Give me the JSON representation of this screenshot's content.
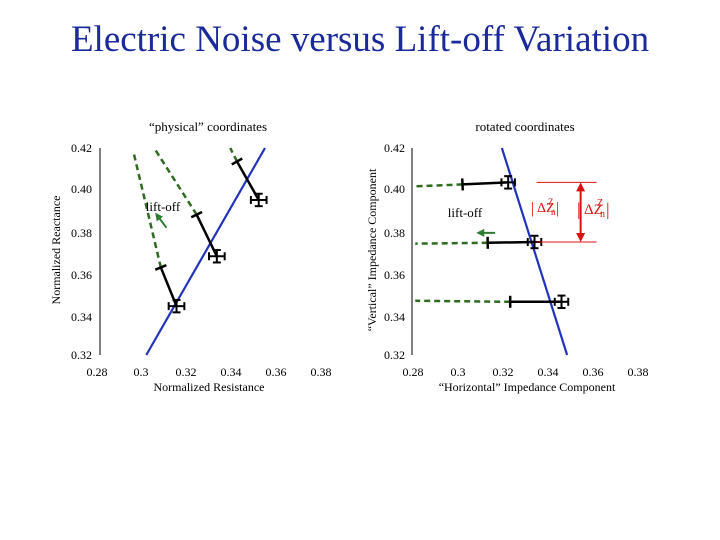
{
  "slide": {
    "title": "Electric Noise versus Lift-off Variation"
  },
  "chart_data": [
    {
      "type": "line",
      "subtitle": "“physical” coordinates",
      "xlabel": "Normalized Resistance",
      "ylabel": "Normalized Reactance",
      "xlim": [
        0.28,
        0.38
      ],
      "ylim": [
        0.32,
        0.42
      ],
      "xticks": [
        "0.28",
        "0.3",
        "0.32",
        "0.34",
        "0.36",
        "0.38"
      ],
      "yticks": [
        "0.32",
        "0.34",
        "0.36",
        "0.38",
        "0.40",
        "0.42"
      ],
      "annotation": "lift-off",
      "colors": {
        "curve": "#2233bb",
        "liftoff": "#2e6b1f",
        "segment": "#000000",
        "arrow": "#2e7d32"
      },
      "curve": [
        [
          0.302,
          0.32
        ],
        [
          0.355,
          0.42
        ]
      ],
      "measurement_points": [
        {
          "x": 0.3155,
          "y": 0.3436,
          "dx": 0.0035,
          "dy": 0.003
        },
        {
          "x": 0.3335,
          "y": 0.3677,
          "dx": 0.0035,
          "dy": 0.003
        },
        {
          "x": 0.3522,
          "y": 0.3949,
          "dx": 0.0035,
          "dy": 0.003
        }
      ],
      "liftoff_segments": [
        {
          "from": [
            0.3155,
            0.3436
          ],
          "to": [
            0.3085,
            0.3623
          ]
        },
        {
          "from": [
            0.3335,
            0.3677
          ],
          "to": [
            0.3245,
            0.3878
          ]
        },
        {
          "from": [
            0.3522,
            0.3949
          ],
          "to": [
            0.3425,
            0.4135
          ]
        }
      ],
      "dashed_extensions": [
        {
          "from": [
            0.3085,
            0.3623
          ],
          "to": [
            0.2965,
            0.417
          ]
        },
        {
          "from": [
            0.3245,
            0.3878
          ],
          "to": [
            0.3055,
            0.42
          ]
        },
        {
          "from": [
            0.3425,
            0.4135
          ],
          "to": [
            0.3395,
            0.42
          ]
        }
      ],
      "arrow": {
        "from": [
          0.311,
          0.3815
        ],
        "to": [
          0.3065,
          0.388
        ]
      }
    },
    {
      "type": "line",
      "subtitle": "rotated coordinates",
      "xlabel": "“Horizontal” Impedance Component",
      "ylabel": "“Vertical” Impedance Component",
      "xlim": [
        0.28,
        0.38
      ],
      "ylim": [
        0.32,
        0.42
      ],
      "xticks": [
        "0.28",
        "0.3",
        "0.32",
        "0.34",
        "0.36",
        "0.38"
      ],
      "yticks": [
        "0.32",
        "0.34",
        "0.36",
        "0.38",
        "0.40",
        "0.42"
      ],
      "annotation": "lift-off",
      "colors": {
        "curve": "#2233bb",
        "liftoff": "#2e6b1f",
        "segment": "#000000",
        "arrow": "#2e7d32",
        "delta": "#dd1111"
      },
      "curve": [
        [
          0.3195,
          0.42
        ],
        [
          0.3485,
          0.32
        ]
      ],
      "measurement_points": [
        {
          "x": 0.3223,
          "y": 0.4034,
          "dx": 0.003,
          "dy": 0.003
        },
        {
          "x": 0.334,
          "y": 0.3746,
          "dx": 0.003,
          "dy": 0.003
        },
        {
          "x": 0.346,
          "y": 0.3457,
          "dx": 0.003,
          "dy": 0.003
        }
      ],
      "liftoff_segments": [
        {
          "from": [
            0.3223,
            0.4034
          ],
          "to": [
            0.302,
            0.4024
          ]
        },
        {
          "from": [
            0.334,
            0.3746
          ],
          "to": [
            0.3132,
            0.3742
          ]
        },
        {
          "from": [
            0.346,
            0.3457
          ],
          "to": [
            0.3232,
            0.3457
          ]
        }
      ],
      "dashed_extensions": [
        {
          "from": [
            0.302,
            0.4024
          ],
          "to": [
            0.281,
            0.4015
          ]
        },
        {
          "from": [
            0.3132,
            0.3742
          ],
          "to": [
            0.281,
            0.3738
          ]
        },
        {
          "from": [
            0.3232,
            0.3457
          ],
          "to": [
            0.281,
            0.3462
          ]
        }
      ],
      "arrow": {
        "from": [
          0.3165,
          0.379
        ],
        "to": [
          0.309,
          0.379
        ]
      },
      "delta_range": {
        "x": 0.3545,
        "y_top": 0.4034,
        "y_bottom": 0.3746
      },
      "delta_labels": [
        {
          "name": "delta-z-over-z-left",
          "symbol": "ΔZ",
          "divisor": "Z",
          "sub": "n"
        },
        {
          "name": "delta-z-over-z-right",
          "symbol": "ΔZ",
          "divisor": "Z",
          "sub": "n"
        }
      ]
    }
  ]
}
